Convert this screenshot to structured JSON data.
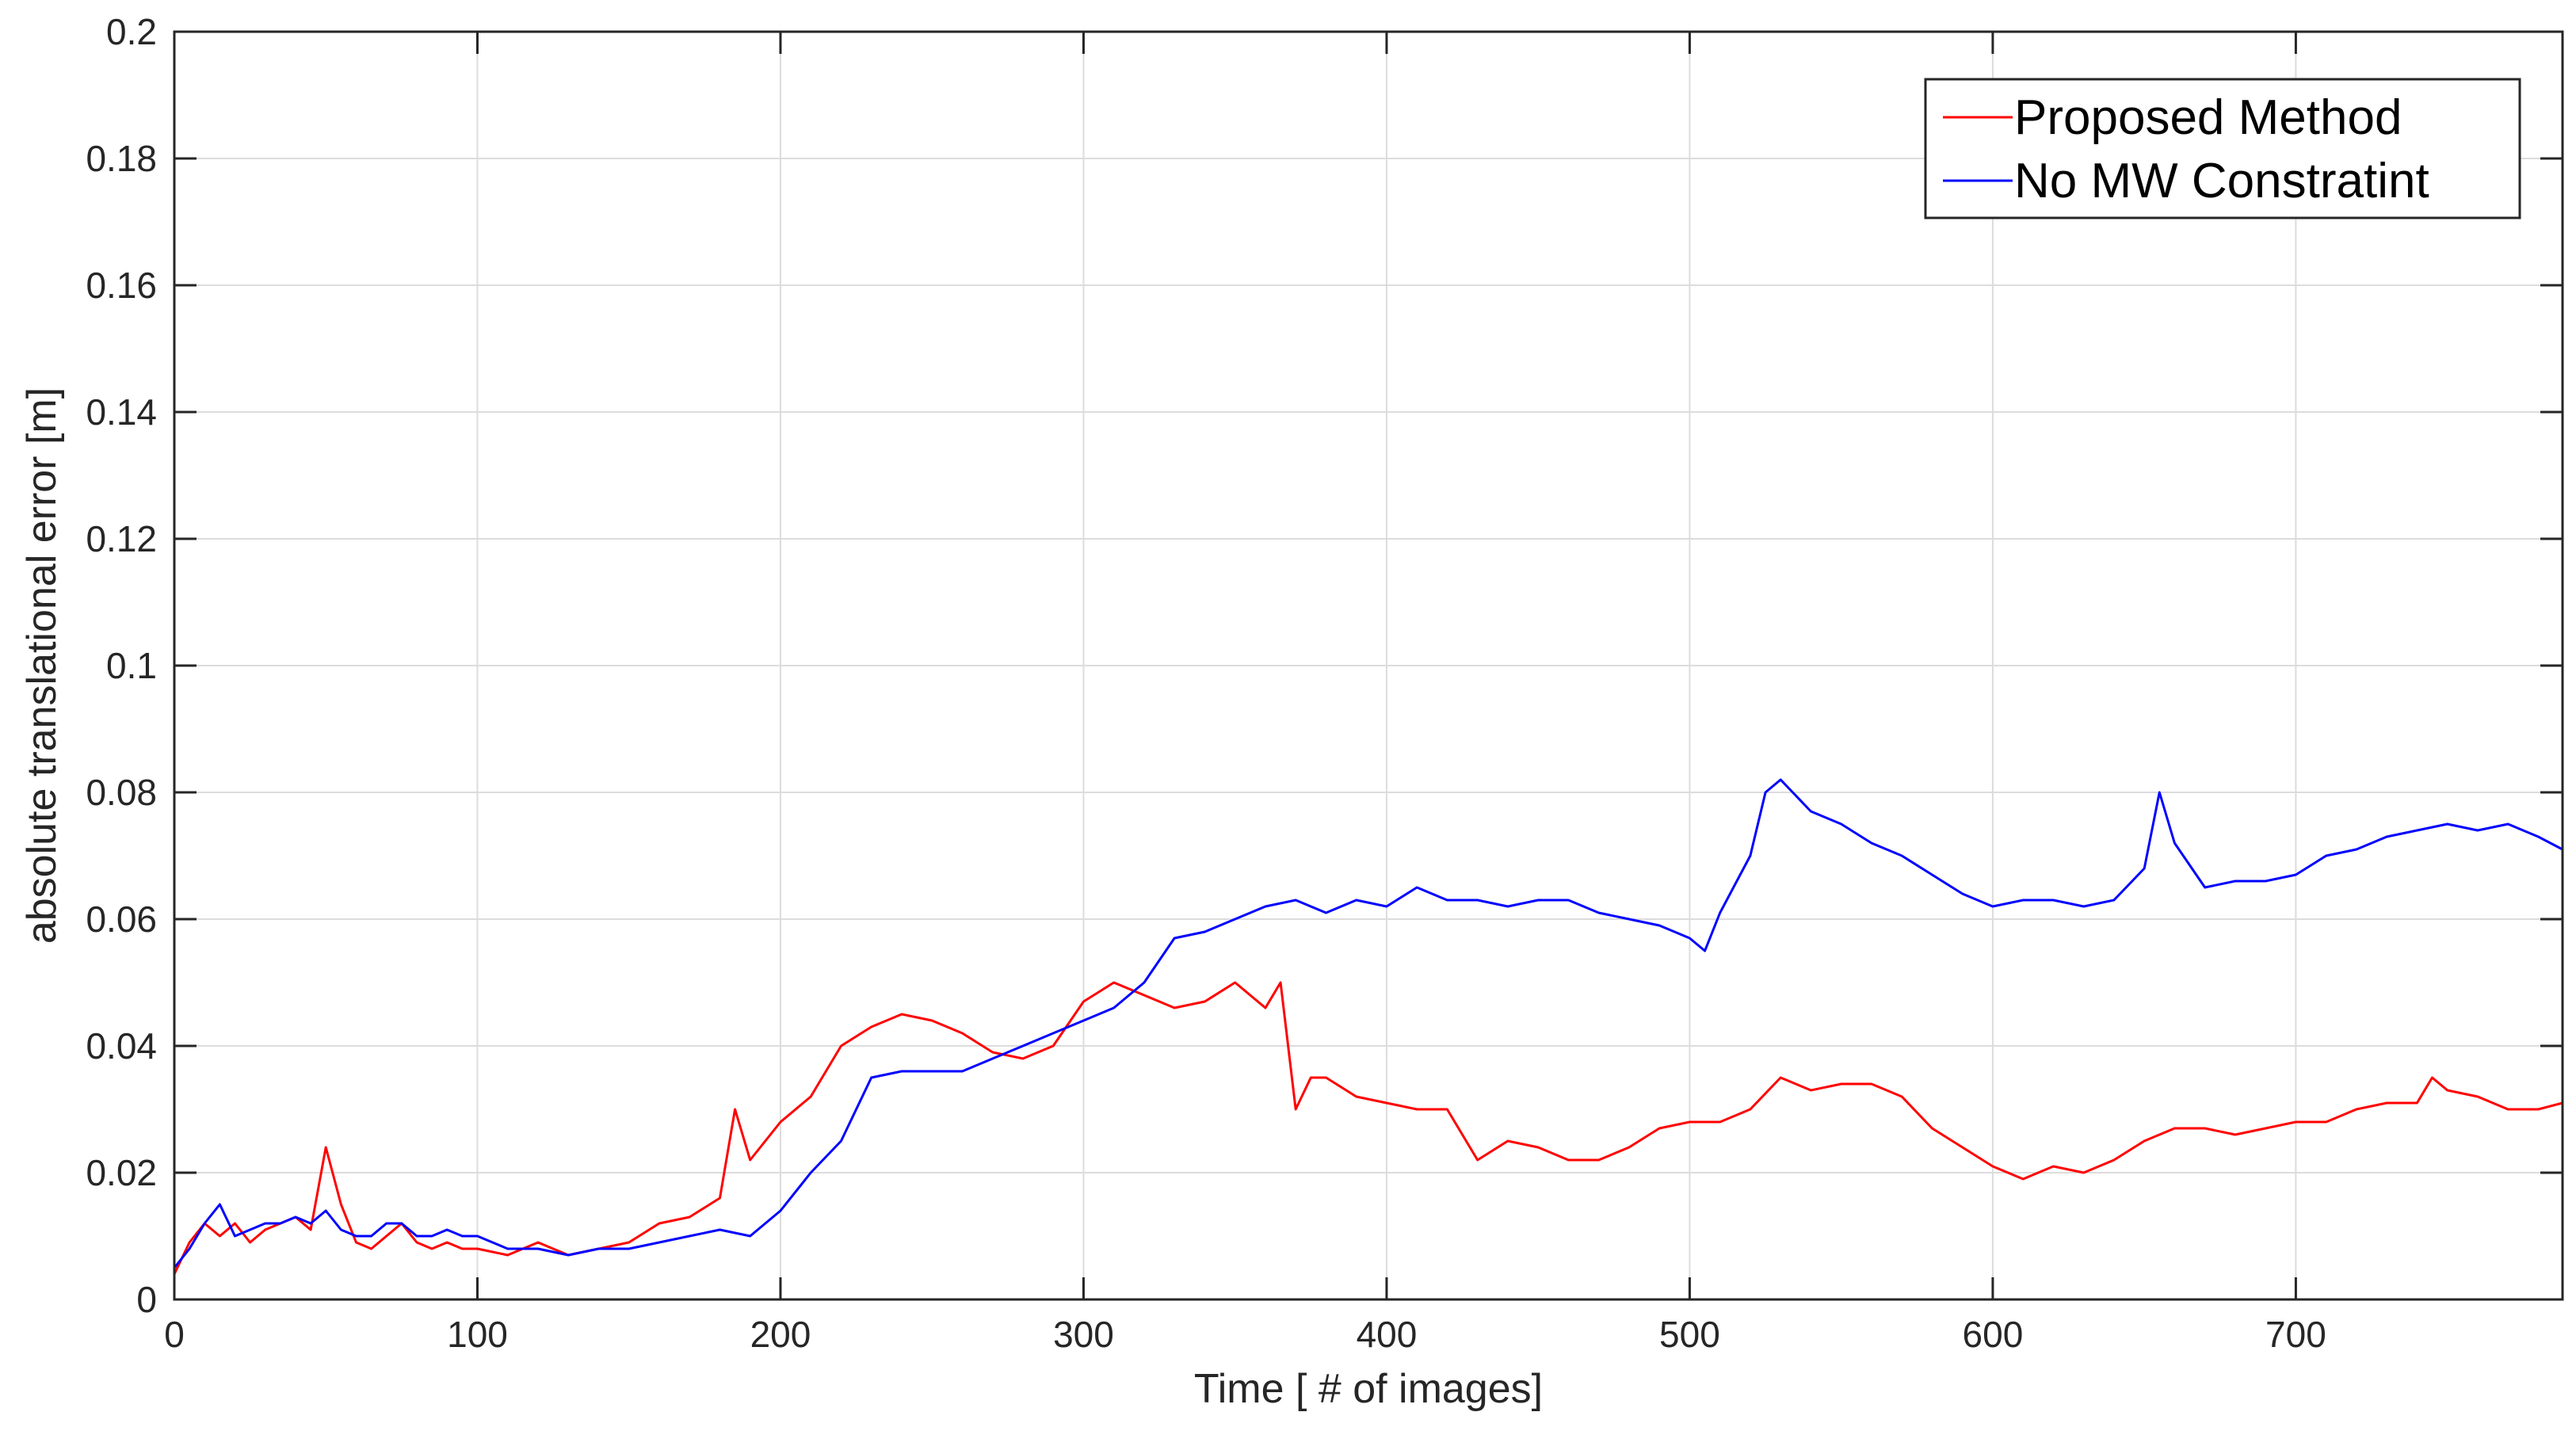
{
  "chart_data": {
    "type": "line",
    "title": "",
    "xlabel": "Time [ # of images]",
    "ylabel": "absolute translational error [m]",
    "xlim": [
      0,
      788
    ],
    "ylim": [
      0,
      0.2
    ],
    "xticks": [
      0,
      100,
      200,
      300,
      400,
      500,
      600,
      700
    ],
    "xtick_labels": [
      "0",
      "100",
      "200",
      "300",
      "400",
      "500",
      "600",
      "700"
    ],
    "yticks": [
      0,
      0.02,
      0.04,
      0.06,
      0.08,
      0.1,
      0.12,
      0.14,
      0.16,
      0.18,
      0.2
    ],
    "ytick_labels": [
      "0",
      "0.02",
      "0.04",
      "0.06",
      "0.08",
      "0.1",
      "0.12",
      "0.14",
      "0.16",
      "0.18",
      "0.2"
    ],
    "grid": true,
    "legend_position": "top-right",
    "series": [
      {
        "name": "Proposed Method",
        "color": "#ff0000",
        "x": [
          0,
          5,
          10,
          15,
          20,
          25,
          30,
          35,
          40,
          45,
          50,
          55,
          60,
          65,
          70,
          75,
          80,
          85,
          90,
          95,
          100,
          110,
          120,
          130,
          140,
          150,
          160,
          170,
          180,
          185,
          190,
          200,
          210,
          220,
          230,
          240,
          250,
          260,
          270,
          280,
          290,
          300,
          310,
          320,
          330,
          340,
          350,
          360,
          365,
          370,
          375,
          380,
          390,
          400,
          410,
          420,
          430,
          440,
          450,
          460,
          470,
          480,
          490,
          500,
          510,
          520,
          530,
          540,
          550,
          560,
          570,
          580,
          590,
          600,
          610,
          620,
          630,
          640,
          650,
          660,
          670,
          680,
          690,
          700,
          710,
          720,
          730,
          740,
          745,
          750,
          760,
          770,
          780,
          788
        ],
        "y": [
          0.004,
          0.009,
          0.012,
          0.01,
          0.012,
          0.009,
          0.011,
          0.012,
          0.013,
          0.011,
          0.024,
          0.015,
          0.009,
          0.008,
          0.01,
          0.012,
          0.009,
          0.008,
          0.009,
          0.008,
          0.008,
          0.007,
          0.009,
          0.007,
          0.008,
          0.009,
          0.012,
          0.013,
          0.016,
          0.03,
          0.022,
          0.028,
          0.032,
          0.04,
          0.043,
          0.045,
          0.044,
          0.042,
          0.039,
          0.038,
          0.04,
          0.047,
          0.05,
          0.048,
          0.046,
          0.047,
          0.05,
          0.046,
          0.05,
          0.03,
          0.035,
          0.035,
          0.032,
          0.031,
          0.03,
          0.03,
          0.022,
          0.025,
          0.024,
          0.022,
          0.022,
          0.024,
          0.027,
          0.028,
          0.028,
          0.03,
          0.035,
          0.033,
          0.034,
          0.034,
          0.032,
          0.027,
          0.024,
          0.021,
          0.019,
          0.021,
          0.02,
          0.022,
          0.025,
          0.027,
          0.027,
          0.026,
          0.027,
          0.028,
          0.028,
          0.03,
          0.031,
          0.031,
          0.035,
          0.033,
          0.032,
          0.03,
          0.03,
          0.031
        ]
      },
      {
        "name": "No MW Constratint",
        "color": "#0000ff",
        "x": [
          0,
          5,
          10,
          15,
          20,
          25,
          30,
          35,
          40,
          45,
          50,
          55,
          60,
          65,
          70,
          75,
          80,
          85,
          90,
          95,
          100,
          110,
          120,
          130,
          140,
          150,
          160,
          170,
          180,
          190,
          200,
          210,
          220,
          230,
          240,
          250,
          260,
          270,
          280,
          290,
          300,
          310,
          320,
          330,
          340,
          350,
          360,
          370,
          380,
          390,
          400,
          410,
          420,
          430,
          440,
          450,
          460,
          470,
          480,
          490,
          500,
          505,
          510,
          520,
          525,
          530,
          540,
          550,
          560,
          570,
          580,
          590,
          600,
          610,
          620,
          630,
          640,
          650,
          655,
          660,
          670,
          680,
          690,
          700,
          710,
          720,
          730,
          740,
          750,
          760,
          770,
          780,
          788
        ],
        "y": [
          0.005,
          0.008,
          0.012,
          0.015,
          0.01,
          0.011,
          0.012,
          0.012,
          0.013,
          0.012,
          0.014,
          0.011,
          0.01,
          0.01,
          0.012,
          0.012,
          0.01,
          0.01,
          0.011,
          0.01,
          0.01,
          0.008,
          0.008,
          0.007,
          0.008,
          0.008,
          0.009,
          0.01,
          0.011,
          0.01,
          0.014,
          0.02,
          0.025,
          0.035,
          0.036,
          0.036,
          0.036,
          0.038,
          0.04,
          0.042,
          0.044,
          0.046,
          0.05,
          0.057,
          0.058,
          0.06,
          0.062,
          0.063,
          0.061,
          0.063,
          0.062,
          0.065,
          0.063,
          0.063,
          0.062,
          0.063,
          0.063,
          0.061,
          0.06,
          0.059,
          0.057,
          0.055,
          0.061,
          0.07,
          0.08,
          0.082,
          0.077,
          0.075,
          0.072,
          0.07,
          0.067,
          0.064,
          0.062,
          0.063,
          0.063,
          0.062,
          0.063,
          0.068,
          0.08,
          0.072,
          0.065,
          0.066,
          0.066,
          0.067,
          0.07,
          0.071,
          0.073,
          0.074,
          0.075,
          0.074,
          0.075,
          0.073,
          0.071
        ]
      }
    ]
  }
}
